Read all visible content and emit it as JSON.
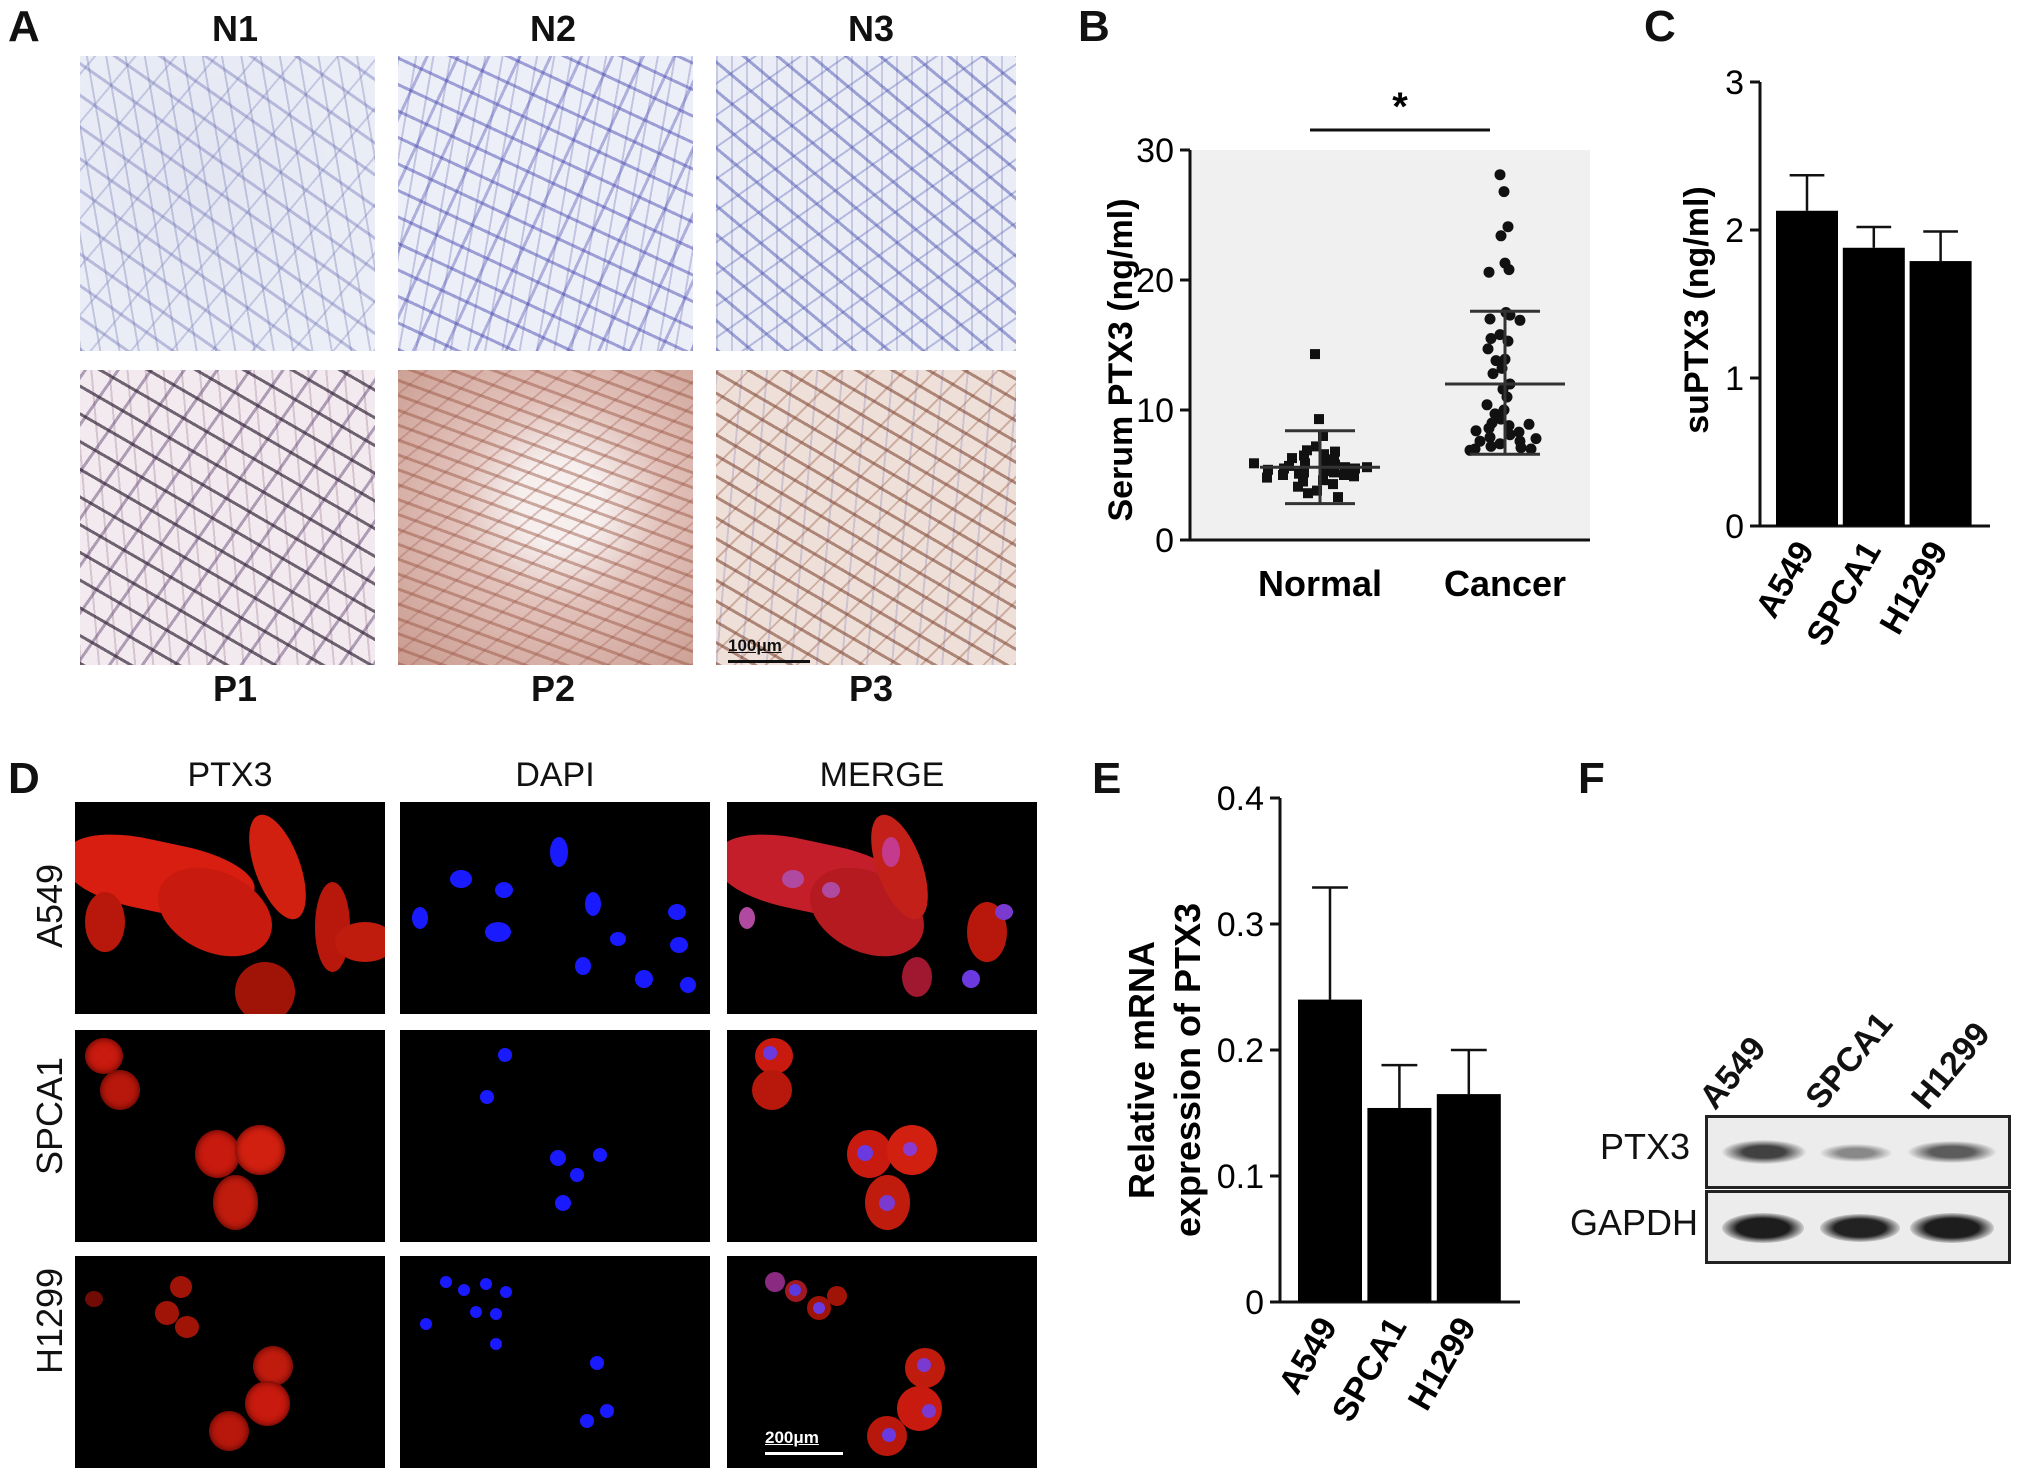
{
  "panel_letters": {
    "a": "A",
    "b": "B",
    "c": "C",
    "d": "D",
    "e": "E",
    "f": "F"
  },
  "panel_a": {
    "top_labels": [
      "N1",
      "N2",
      "N3"
    ],
    "bottom_labels": [
      "P1",
      "P2",
      "P3"
    ],
    "scale_bar": "100μm"
  },
  "panel_d": {
    "column_titles": [
      "PTX3",
      "DAPI",
      "MERGE"
    ],
    "row_labels": [
      "A549",
      "SPCA1",
      "H1299"
    ],
    "scale_bar": "200μm",
    "colors": {
      "ptx3": "#d81e10",
      "dapi": "#1a1aff",
      "merge": "#c43a8c"
    }
  },
  "panel_f": {
    "lane_labels": [
      "A549",
      "SPCA1",
      "H1299"
    ],
    "row_labels": [
      "PTX3",
      "GAPDH"
    ],
    "ptx3_band_intensity": [
      0.75,
      0.35,
      0.6
    ],
    "gapdh_band_intensity": [
      0.95,
      0.92,
      0.95
    ]
  },
  "chart_data": [
    {
      "id": "B",
      "type": "scatter",
      "categories": [
        "Normal",
        "Cancer"
      ],
      "ylabel": "Serum PTX3 (ng/ml)",
      "ylim": [
        0,
        30
      ],
      "yticks": [
        0,
        10,
        20,
        30
      ],
      "significance": "*",
      "series": [
        {
          "group": "Normal",
          "marker": "square",
          "values": [
            14.3,
            9.3,
            8.0,
            7.2,
            6.9,
            6.6,
            6.5,
            6.2,
            6.0,
            5.9,
            5.8,
            5.7,
            5.6,
            5.5,
            5.5,
            5.4,
            5.3,
            5.2,
            5.2,
            5.1,
            5.0,
            5.0,
            4.9,
            4.8,
            4.6,
            4.5,
            4.3,
            4.1,
            3.8,
            3.6,
            3.3,
            6.3,
            6.8,
            5.6,
            5.9
          ],
          "mean": 5.6,
          "sd_range": [
            2.8,
            8.4
          ]
        },
        {
          "group": "Cancer",
          "marker": "circle",
          "values": [
            28.1,
            26.8,
            24.1,
            23.4,
            21.3,
            20.8,
            20.6,
            17.5,
            17.3,
            17.0,
            16.9,
            15.8,
            15.5,
            15.3,
            14.7,
            13.9,
            13.8,
            13.2,
            12.8,
            12.0,
            11.6,
            11.0,
            10.4,
            10.0,
            9.7,
            9.3,
            9.0,
            8.8,
            8.6,
            8.3,
            8.1,
            7.9,
            7.6,
            7.4,
            7.2,
            7.1,
            7.0,
            7.0,
            6.9,
            8.4,
            7.6,
            7.8,
            8.9
          ],
          "mean": 12.0,
          "sd_range": [
            6.6,
            17.6
          ]
        }
      ]
    },
    {
      "id": "C",
      "type": "bar",
      "categories": [
        "A549",
        "SPCA1",
        "H1299"
      ],
      "values": [
        2.13,
        1.88,
        1.79
      ],
      "errors": [
        0.24,
        0.14,
        0.2
      ],
      "ylabel": "suPTX3 (ng/ml)",
      "ylim": [
        0,
        3
      ],
      "yticks": [
        0,
        1,
        2,
        3
      ]
    },
    {
      "id": "E",
      "type": "bar",
      "categories": [
        "A549",
        "SPCA1",
        "H1299"
      ],
      "values": [
        0.24,
        0.154,
        0.165
      ],
      "errors": [
        0.089,
        0.034,
        0.035
      ],
      "ylabel": "Relative mRNA expression of PTX3",
      "ylabel_lines": [
        "Relative mRNA",
        "expression of PTX3"
      ],
      "ylim": [
        0,
        0.4
      ],
      "yticks": [
        "0",
        "0.1",
        "0.2",
        "0.3",
        "0.4"
      ]
    }
  ]
}
